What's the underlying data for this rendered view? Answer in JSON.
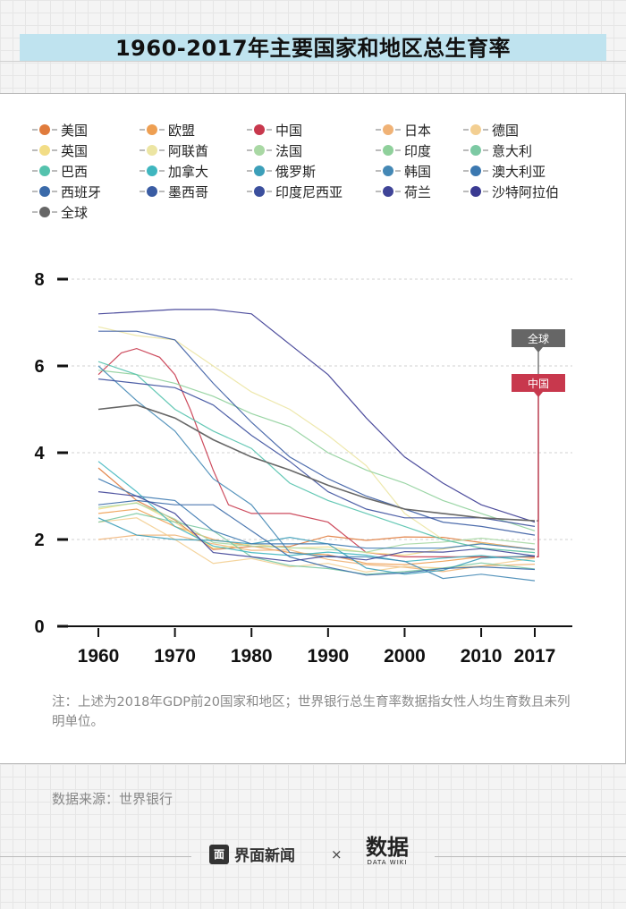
{
  "title": "1960-2017年主要国家和地区总生育率",
  "note": "注：上述为2018年GDP前20国家和地区；世界银行总生育率数据指女性人均生育数且未列明单位。",
  "source": "数据来源：世界银行",
  "footer": {
    "logo_icon": "面",
    "logo_text": "界面新闻",
    "separator": "×",
    "brand_cn": "数据",
    "brand_en": "DATA WIKI"
  },
  "colors": {
    "title_bar": "#bfe3ef",
    "china": "#c8384d",
    "world": "#666666"
  },
  "chart_data": {
    "type": "line",
    "xlabel": "",
    "ylabel": "",
    "xlim": [
      1960,
      2017
    ],
    "ylim": [
      0,
      8
    ],
    "x_ticks": [
      1960,
      1970,
      1980,
      1990,
      2000,
      2010,
      2017
    ],
    "y_ticks": [
      0,
      2,
      4,
      6,
      8
    ],
    "grid": "dashed horizontal",
    "legend_position": "top",
    "annotations": [
      {
        "label": "全球",
        "series": "全球",
        "color": "#666666"
      },
      {
        "label": "中国",
        "series": "中国",
        "color": "#c8384d"
      }
    ],
    "series": [
      {
        "name": "美国",
        "color": "#e07b3c",
        "x": [
          1960,
          1965,
          1970,
          1975,
          1980,
          1985,
          1990,
          1995,
          2000,
          2005,
          2010,
          2017
        ],
        "values": [
          3.65,
          2.9,
          2.45,
          1.77,
          1.84,
          1.84,
          2.08,
          1.98,
          2.06,
          2.05,
          1.93,
          1.77
        ]
      },
      {
        "name": "欧盟",
        "color": "#ee9f52",
        "x": [
          1960,
          1965,
          1970,
          1975,
          1980,
          1985,
          1990,
          1995,
          2000,
          2005,
          2010,
          2017
        ],
        "values": [
          2.6,
          2.7,
          2.3,
          2.0,
          1.85,
          1.7,
          1.65,
          1.45,
          1.42,
          1.5,
          1.6,
          1.59
        ]
      },
      {
        "name": "中国",
        "color": "#c8384d",
        "x": [
          1960,
          1963,
          1965,
          1968,
          1970,
          1972,
          1975,
          1977,
          1980,
          1985,
          1990,
          1995,
          2000,
          2005,
          2010,
          2017
        ],
        "values": [
          5.8,
          6.3,
          6.4,
          6.2,
          5.8,
          5.0,
          3.6,
          2.8,
          2.6,
          2.6,
          2.4,
          1.7,
          1.6,
          1.6,
          1.6,
          1.6
        ]
      },
      {
        "name": "日本",
        "color": "#f0b276",
        "x": [
          1960,
          1965,
          1970,
          1975,
          1980,
          1985,
          1990,
          1995,
          2000,
          2005,
          2010,
          2017
        ],
        "values": [
          2.0,
          2.1,
          2.1,
          1.9,
          1.75,
          1.76,
          1.54,
          1.42,
          1.36,
          1.26,
          1.39,
          1.43
        ]
      },
      {
        "name": "德国",
        "color": "#f3cf92",
        "x": [
          1960,
          1965,
          1970,
          1975,
          1980,
          1985,
          1990,
          1995,
          2000,
          2005,
          2010,
          2017
        ],
        "values": [
          2.4,
          2.5,
          2.0,
          1.45,
          1.56,
          1.37,
          1.45,
          1.25,
          1.38,
          1.34,
          1.39,
          1.57
        ]
      },
      {
        "name": "英国",
        "color": "#f2dd86",
        "x": [
          1960,
          1965,
          1970,
          1975,
          1980,
          1985,
          1990,
          1995,
          2000,
          2005,
          2010,
          2017
        ],
        "values": [
          2.7,
          2.85,
          2.4,
          1.8,
          1.9,
          1.8,
          1.83,
          1.7,
          1.64,
          1.78,
          1.92,
          1.76
        ]
      },
      {
        "name": "阿联酋",
        "color": "#ece5a3",
        "x": [
          1960,
          1965,
          1970,
          1975,
          1980,
          1985,
          1990,
          1995,
          2000,
          2005,
          2010,
          2017
        ],
        "values": [
          6.9,
          6.7,
          6.6,
          6.0,
          5.4,
          5.0,
          4.4,
          3.7,
          2.6,
          2.0,
          1.8,
          1.7
        ]
      },
      {
        "name": "法国",
        "color": "#a9d8a4",
        "x": [
          1960,
          1965,
          1970,
          1975,
          1980,
          1985,
          1990,
          1995,
          2000,
          2005,
          2010,
          2017
        ],
        "values": [
          2.74,
          2.84,
          2.47,
          1.93,
          1.85,
          1.81,
          1.77,
          1.71,
          1.89,
          1.94,
          2.03,
          1.9
        ]
      },
      {
        "name": "印度",
        "color": "#8fd09b",
        "x": [
          1960,
          1965,
          1970,
          1975,
          1980,
          1985,
          1990,
          1995,
          2000,
          2005,
          2010,
          2017
        ],
        "values": [
          5.9,
          5.8,
          5.6,
          5.3,
          4.9,
          4.6,
          4.0,
          3.6,
          3.3,
          2.9,
          2.6,
          2.2
        ]
      },
      {
        "name": "意大利",
        "color": "#7cc9a3",
        "x": [
          1960,
          1965,
          1970,
          1975,
          1980,
          1985,
          1990,
          1995,
          2000,
          2005,
          2010,
          2017
        ],
        "values": [
          2.4,
          2.6,
          2.4,
          2.2,
          1.6,
          1.4,
          1.33,
          1.2,
          1.26,
          1.34,
          1.46,
          1.32
        ]
      },
      {
        "name": "巴西",
        "color": "#54c2ad",
        "x": [
          1960,
          1965,
          1970,
          1975,
          1980,
          1985,
          1990,
          1995,
          2000,
          2005,
          2010,
          2017
        ],
        "values": [
          6.1,
          5.8,
          5.0,
          4.5,
          4.1,
          3.3,
          2.9,
          2.6,
          2.3,
          2.0,
          1.8,
          1.7
        ]
      },
      {
        "name": "加拿大",
        "color": "#3fb6bf",
        "x": [
          1960,
          1965,
          1970,
          1975,
          1980,
          1985,
          1990,
          1995,
          2000,
          2005,
          2010,
          2017
        ],
        "values": [
          3.8,
          3.1,
          2.3,
          1.85,
          1.7,
          1.63,
          1.71,
          1.64,
          1.49,
          1.57,
          1.63,
          1.5
        ]
      },
      {
        "name": "俄罗斯",
        "color": "#3c9fb9",
        "x": [
          1960,
          1965,
          1970,
          1975,
          1980,
          1985,
          1990,
          1995,
          2000,
          2005,
          2010,
          2017
        ],
        "values": [
          2.5,
          2.1,
          2.0,
          1.98,
          1.9,
          2.05,
          1.9,
          1.34,
          1.2,
          1.29,
          1.57,
          1.62
        ]
      },
      {
        "name": "韩国",
        "color": "#4488b5",
        "x": [
          1960,
          1965,
          1970,
          1975,
          1980,
          1985,
          1990,
          1995,
          2000,
          2005,
          2010,
          2017
        ],
        "values": [
          6.0,
          5.2,
          4.5,
          3.4,
          2.8,
          1.7,
          1.6,
          1.6,
          1.5,
          1.1,
          1.2,
          1.05
        ]
      },
      {
        "name": "澳大利亚",
        "color": "#3b78b0",
        "x": [
          1960,
          1965,
          1970,
          1975,
          1980,
          1985,
          1990,
          1995,
          2000,
          2005,
          2010,
          2017
        ],
        "values": [
          3.4,
          3.0,
          2.9,
          2.2,
          1.9,
          1.9,
          1.9,
          1.8,
          1.8,
          1.8,
          1.9,
          1.77
        ]
      },
      {
        "name": "西班牙",
        "color": "#3a6aa9",
        "x": [
          1960,
          1965,
          1970,
          1975,
          1980,
          1985,
          1990,
          1995,
          2000,
          2005,
          2010,
          2017
        ],
        "values": [
          2.8,
          2.9,
          2.8,
          2.8,
          2.2,
          1.6,
          1.36,
          1.18,
          1.23,
          1.33,
          1.37,
          1.31
        ]
      },
      {
        "name": "墨西哥",
        "color": "#3a5ca3",
        "x": [
          1960,
          1965,
          1970,
          1975,
          1980,
          1985,
          1990,
          1995,
          2000,
          2005,
          2010,
          2017
        ],
        "values": [
          6.8,
          6.8,
          6.6,
          5.6,
          4.7,
          3.9,
          3.4,
          3.0,
          2.7,
          2.4,
          2.3,
          2.1
        ]
      },
      {
        "name": "印度尼西亚",
        "color": "#3b4f9d",
        "x": [
          1960,
          1965,
          1970,
          1975,
          1980,
          1985,
          1990,
          1995,
          2000,
          2005,
          2010,
          2017
        ],
        "values": [
          5.7,
          5.6,
          5.5,
          5.1,
          4.4,
          3.8,
          3.1,
          2.7,
          2.5,
          2.5,
          2.5,
          2.3
        ]
      },
      {
        "name": "荷兰",
        "color": "#3f4497",
        "x": [
          1960,
          1965,
          1970,
          1975,
          1980,
          1985,
          1990,
          1995,
          2000,
          2005,
          2010,
          2017
        ],
        "values": [
          3.1,
          3.0,
          2.6,
          1.7,
          1.6,
          1.5,
          1.62,
          1.53,
          1.72,
          1.71,
          1.79,
          1.62
        ]
      },
      {
        "name": "沙特阿拉伯",
        "color": "#3a3a92",
        "x": [
          1960,
          1965,
          1970,
          1975,
          1980,
          1985,
          1990,
          1995,
          2000,
          2005,
          2010,
          2017
        ],
        "values": [
          7.2,
          7.25,
          7.3,
          7.3,
          7.2,
          6.5,
          5.8,
          4.8,
          3.9,
          3.3,
          2.8,
          2.4
        ]
      },
      {
        "name": "全球",
        "color": "#666666",
        "x": [
          1960,
          1965,
          1970,
          1975,
          1980,
          1985,
          1990,
          1995,
          2000,
          2005,
          2010,
          2017
        ],
        "values": [
          5.0,
          5.1,
          4.8,
          4.3,
          3.9,
          3.6,
          3.25,
          2.95,
          2.7,
          2.6,
          2.5,
          2.43
        ]
      }
    ]
  }
}
